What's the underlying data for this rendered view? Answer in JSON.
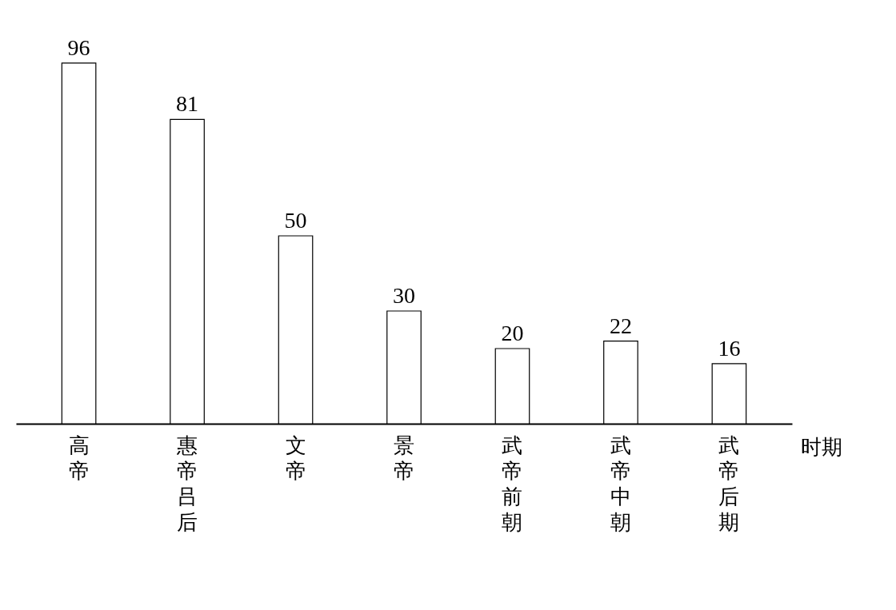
{
  "chart_data": {
    "type": "bar",
    "xlabel": "时期",
    "categories": [
      "高帝",
      "惠帝吕后",
      "文帝",
      "景帝",
      "武帝前朝",
      "武帝中朝",
      "武帝后期"
    ],
    "values": [
      96,
      81,
      50,
      30,
      20,
      22,
      16
    ],
    "color": "#ffffff",
    "data_labels": true,
    "tick_labels": "x"
  }
}
